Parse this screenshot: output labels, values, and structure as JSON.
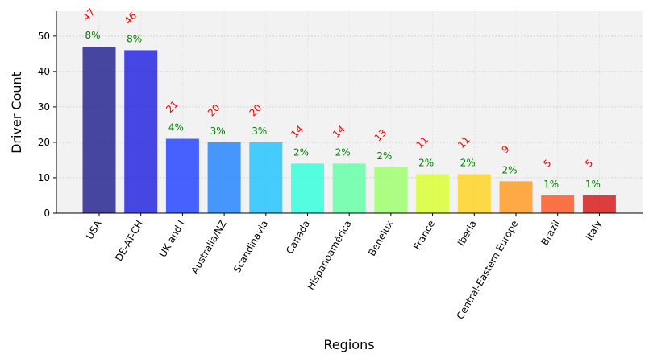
{
  "chart_data": {
    "type": "bar",
    "title": "",
    "xlabel": "Regions",
    "ylabel": "Driver Count",
    "ylim": [
      0,
      57
    ],
    "yticks": [
      0,
      10,
      20,
      30,
      40,
      50
    ],
    "grid": true,
    "categories": [
      "USA",
      "DE-AT-CH",
      "UK and I",
      "Australia/NZ",
      "Scandinavia",
      "Canada",
      "Hispanoamérica",
      "Benelux",
      "France",
      "Iberia",
      "Central-Eastern Europe",
      "Brazil",
      "Italy"
    ],
    "values": [
      47,
      46,
      21,
      20,
      20,
      14,
      14,
      13,
      11,
      11,
      9,
      5,
      5
    ],
    "value_labels": [
      "47",
      "46",
      "21",
      "20",
      "20",
      "14",
      "14",
      "13",
      "11",
      "11",
      "9",
      "5",
      "5"
    ],
    "percent_labels": [
      "8%",
      "8%",
      "4%",
      "3%",
      "3%",
      "2%",
      "2%",
      "2%",
      "2%",
      "2%",
      "2%",
      "1%",
      "1%"
    ],
    "colors": [
      "#1a1a8c",
      "#1a1adf",
      "#1a3cff",
      "#1a7fff",
      "#1ac0ff",
      "#2affd8",
      "#5cffa3",
      "#9aff66",
      "#d8ff2a",
      "#ffd21a",
      "#ff961a",
      "#ff501a",
      "#d80f0f"
    ]
  }
}
